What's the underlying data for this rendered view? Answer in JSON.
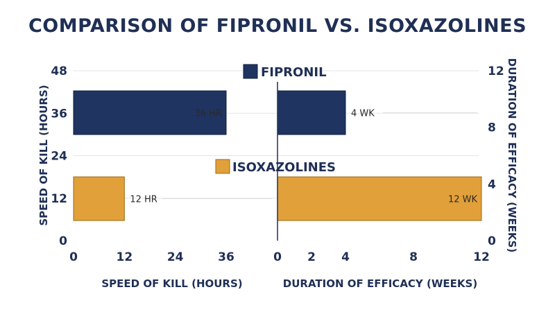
{
  "chart_data": {
    "type": "bar",
    "title": "COMPARISON OF FIPRONIL VS. ISOXAZOLINES",
    "orientation": "horizontal",
    "colors": {
      "fipronil": "#1f3461",
      "isoxazolines": "#e2a03a",
      "text": "#1f2f55"
    },
    "legend": [
      "FIPRONIL",
      "ISOXAZOLINES"
    ],
    "panels": [
      {
        "name": "speed",
        "xlabel": "SPEED OF KILL (HOURS)",
        "xticks": [
          "0",
          "12",
          "24",
          "36"
        ],
        "xlim": [
          0,
          36
        ],
        "series": [
          {
            "name": "FIPRONIL",
            "value": 36,
            "label": "36 HR"
          },
          {
            "name": "ISOXAZOLINES",
            "value": 12,
            "label": "12 HR"
          }
        ]
      },
      {
        "name": "duration",
        "xlabel": "DURATION OF EFFICACY (WEEKS)",
        "xticks": [
          "0",
          "2",
          "4",
          "8",
          "12"
        ],
        "xlim": [
          0,
          12
        ],
        "series": [
          {
            "name": "FIPRONIL",
            "value": 4,
            "label": "4 WK"
          },
          {
            "name": "ISOXAZOLINES",
            "value": 12,
            "label": "12 WK"
          }
        ]
      }
    ],
    "left_axis": {
      "label": "SPEED OF KILL (HOURS)",
      "ticks": [
        "0",
        "12",
        "24",
        "36",
        "48"
      ],
      "ylim": [
        0,
        48
      ]
    },
    "right_axis": {
      "label": "DURATION OF EFFICACY (WEEKS)",
      "ticks": [
        "0",
        "4",
        "8",
        "12"
      ],
      "ylim": [
        0,
        12
      ]
    }
  }
}
